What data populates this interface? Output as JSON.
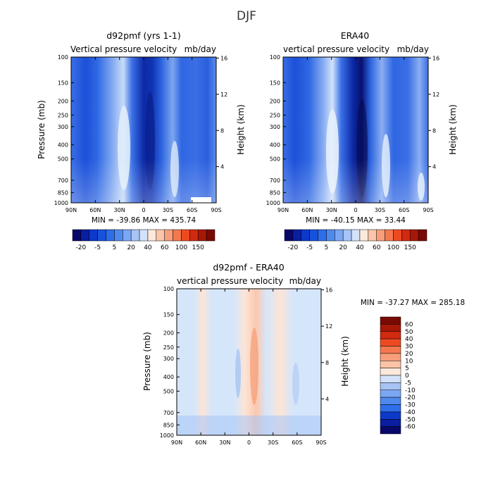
{
  "figure_title": "DJF",
  "chart_data": [
    {
      "type": "heatmap",
      "title": "d92pmf (yrs 1-1)",
      "subtitle_left": "Vertical pressure velocity",
      "subtitle_right": "mb/day",
      "ylabel": "Pressure (mb)",
      "y2label": "Height (km)",
      "x_ticks": [
        "90N",
        "60N",
        "30N",
        "0",
        "30S",
        "60S",
        "90S"
      ],
      "y_ticks": [
        "100",
        "150",
        "200",
        "250",
        "300",
        "400",
        "500",
        "700",
        "850",
        "1000"
      ],
      "y2_ticks": [
        "16",
        "12",
        "8",
        "4"
      ],
      "stats": "MIN = -39.86   MAX = 435.74",
      "colorbar_labels": [
        "-20",
        "-5",
        "5",
        "20",
        "40",
        "60",
        "100",
        "150"
      ]
    },
    {
      "type": "heatmap",
      "title": "ERA40",
      "subtitle_left": "vertical pressure velocity",
      "subtitle_right": "mb/day",
      "ylabel": "Pressure (mb)",
      "y2label": "Height (km)",
      "x_ticks": [
        "90N",
        "60N",
        "30N",
        "0",
        "30S",
        "60S",
        "90S"
      ],
      "y_ticks": [
        "100",
        "150",
        "200",
        "250",
        "300",
        "400",
        "500",
        "700",
        "850",
        "1000"
      ],
      "y2_ticks": [
        "16",
        "12",
        "8",
        "4"
      ],
      "stats": "MIN = -40.15   MAX =  33.44",
      "colorbar_labels": [
        "-20",
        "-5",
        "5",
        "20",
        "40",
        "60",
        "100",
        "150"
      ]
    },
    {
      "type": "heatmap",
      "title": "d92pmf - ERA40",
      "subtitle_left": "vertical pressure velocity",
      "subtitle_right": "mb/day",
      "ylabel": "Pressure (mb)",
      "y2label": "Height (km)",
      "x_ticks": [
        "90N",
        "60N",
        "30N",
        "0",
        "30S",
        "60S",
        "90S"
      ],
      "y_ticks": [
        "100",
        "150",
        "200",
        "250",
        "300",
        "400",
        "500",
        "700",
        "850",
        "1000"
      ],
      "y2_ticks": [
        "16",
        "12",
        "8",
        "4"
      ],
      "stats": "MIN = -37.27   MAX = 285.18",
      "colorbar_labels": [
        "60",
        "50",
        "40",
        "30",
        "20",
        "10",
        "5",
        "0",
        "-5",
        "-10",
        "-20",
        "-30",
        "-40",
        "-50",
        "-60"
      ]
    }
  ],
  "colors": {
    "abs_scale": [
      "#08086b",
      "#0a1ea0",
      "#0c39c8",
      "#1652dc",
      "#2e6ee8",
      "#5089ee",
      "#7ba6f2",
      "#a8c4f6",
      "#d2e2fa",
      "#fde8dc",
      "#fbc4a8",
      "#f89e7a",
      "#f4784e",
      "#ee4a22",
      "#d02a10",
      "#a81808",
      "#7a0a04"
    ],
    "diff_scale": [
      "#7a0a04",
      "#a81808",
      "#d02a10",
      "#ee4a22",
      "#f4784e",
      "#f89e7a",
      "#fbc4a8",
      "#fde8dc",
      "#d2e2fa",
      "#a8c4f6",
      "#7ba6f2",
      "#5089ee",
      "#2e6ee8",
      "#0c39c8",
      "#0a1ea0",
      "#08086b"
    ]
  }
}
